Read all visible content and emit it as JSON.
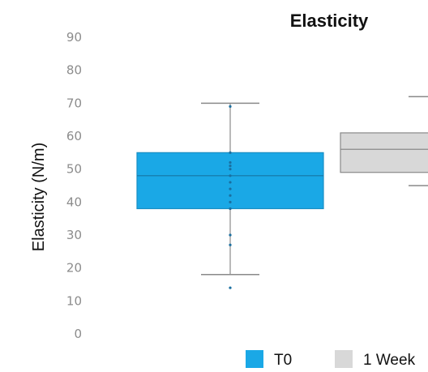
{
  "chart_data": {
    "type": "box",
    "title": "Elasticity",
    "xlabel": "",
    "ylabel": "Elasticity (N/m)",
    "ylim": [
      0,
      90
    ],
    "yticks": [
      0,
      10,
      20,
      30,
      40,
      50,
      60,
      70,
      80,
      90
    ],
    "grid": false,
    "legend": {
      "placement": "bottom",
      "entries": [
        "T0",
        "1 Week"
      ]
    },
    "series": [
      {
        "name": "T0",
        "color": "#1aa8e6",
        "whisker_low": 18,
        "q1": 38,
        "median": 48,
        "q3": 55,
        "whisker_high": 70,
        "points": [
          14,
          27,
          30,
          38,
          40,
          42,
          44,
          46,
          48,
          50,
          51,
          52,
          55,
          69
        ]
      },
      {
        "name": "1 Week",
        "color": "#d8d8d8",
        "whisker_low": 45,
        "q1": 49,
        "median": 56,
        "q3": 61,
        "whisker_high": 72,
        "points": []
      }
    ]
  }
}
